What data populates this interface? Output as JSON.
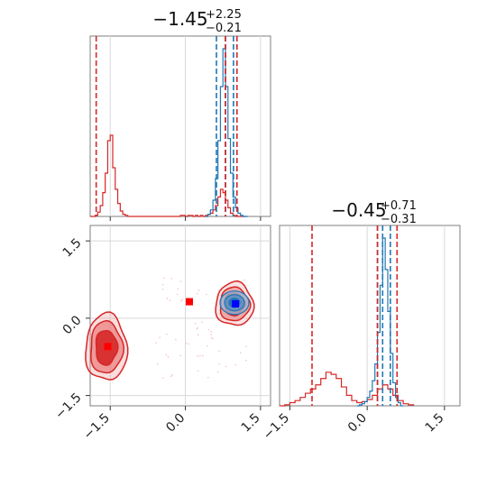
{
  "chart_data": {
    "type": "corner",
    "parameters": [
      {
        "title_value": "−1.45",
        "title_plus": "+2.25",
        "title_minus": "−0.21",
        "range": [
          -1.9,
          1.7
        ]
      },
      {
        "title_value": "−0.45",
        "title_plus": "+0.71",
        "title_minus": "−0.31",
        "range": [
          -1.7,
          1.8
        ]
      }
    ],
    "ticks": [
      {
        "value": -1.5,
        "label": "−1.5"
      },
      {
        "value": 0.0,
        "label": "0.0"
      },
      {
        "value": 1.5,
        "label": "1.5"
      }
    ],
    "colors": {
      "red": "#d62728",
      "blue": "#1f77b4",
      "marker_blue": "#0000ff",
      "marker_red": "#ff0000"
    },
    "hist1_red": {
      "bin_edges": [
        -1.9,
        -1.85,
        -1.8,
        -1.75,
        -1.7,
        -1.65,
        -1.6,
        -1.55,
        -1.5,
        -1.45,
        -1.4,
        -1.35,
        -1.3,
        -1.25,
        -1.2,
        -1.15,
        -1.1,
        -1.05,
        -1.0,
        -0.95,
        -0.9,
        -0.85,
        -0.8,
        -0.75,
        -0.7,
        -0.65,
        -0.6,
        -0.55,
        -0.5,
        -0.45,
        -0.4,
        -0.35,
        -0.3,
        -0.25,
        -0.2,
        -0.15,
        -0.1,
        -0.05,
        0.0,
        0.05,
        0.1,
        0.15,
        0.2,
        0.25,
        0.3,
        0.35,
        0.4,
        0.45,
        0.5,
        0.55,
        0.6,
        0.65,
        0.7,
        0.75,
        0.8,
        0.85,
        0.9,
        0.95,
        1.0,
        1.05,
        1.1,
        1.15,
        1.2
      ],
      "counts": [
        0,
        0,
        1,
        4,
        10,
        22,
        40,
        70,
        75,
        45,
        25,
        12,
        5,
        2,
        1,
        0,
        0,
        0,
        0,
        0,
        0,
        0,
        0,
        0,
        0,
        0,
        0,
        0,
        0,
        0,
        0,
        0,
        0,
        0,
        0,
        0,
        1,
        1,
        0,
        1,
        1,
        0,
        1,
        0,
        1,
        0,
        1,
        2,
        3,
        6,
        10,
        18,
        25,
        22,
        15,
        8,
        3,
        1,
        0,
        0,
        0,
        0
      ],
      "quantiles": [
        -1.78,
        0.8,
        1.03
      ]
    },
    "hist1_blue": {
      "bin_edges": [
        0.4,
        0.45,
        0.5,
        0.55,
        0.6,
        0.65,
        0.7,
        0.75,
        0.8,
        0.85,
        0.9,
        0.95,
        1.0,
        1.05,
        1.1,
        1.15,
        1.2,
        1.25
      ],
      "counts": [
        0,
        2,
        6,
        15,
        35,
        70,
        120,
        155,
        120,
        72,
        40,
        18,
        8,
        3,
        1,
        0,
        0
      ],
      "quantiles": [
        0.62,
        0.8,
        0.96
      ]
    },
    "hist2_red": {
      "bin_edges": [
        -1.7,
        -1.6,
        -1.5,
        -1.4,
        -1.3,
        -1.2,
        -1.1,
        -1.0,
        -0.9,
        -0.8,
        -0.7,
        -0.6,
        -0.5,
        -0.4,
        -0.3,
        -0.2,
        -0.1,
        0.0,
        0.1,
        0.2,
        0.3,
        0.4,
        0.5,
        0.6,
        0.7,
        0.8,
        0.9
      ],
      "counts": [
        0,
        1,
        3,
        5,
        8,
        12,
        16,
        20,
        26,
        32,
        30,
        26,
        18,
        10,
        5,
        3,
        4,
        6,
        10,
        16,
        20,
        16,
        10,
        5,
        2,
        1
      ],
      "quantiles": [
        -1.07,
        0.2,
        0.58
      ]
    },
    "hist2_blue": {
      "bin_edges": [
        -0.2,
        -0.15,
        -0.1,
        -0.05,
        0.0,
        0.05,
        0.1,
        0.15,
        0.2,
        0.25,
        0.3,
        0.35,
        0.4,
        0.45,
        0.5,
        0.55,
        0.6,
        0.65,
        0.7
      ],
      "counts": [
        0,
        1,
        2,
        4,
        8,
        14,
        24,
        40,
        70,
        115,
        160,
        130,
        90,
        50,
        22,
        8,
        3,
        0
      ],
      "quantiles": [
        0.2,
        0.3,
        0.45
      ]
    },
    "scatter_markers": [
      {
        "x": -1.55,
        "y": -0.55,
        "color": "red"
      },
      {
        "x": 0.08,
        "y": 0.32,
        "color": "red"
      },
      {
        "x": 1.0,
        "y": 0.28,
        "color": "blue"
      }
    ]
  }
}
